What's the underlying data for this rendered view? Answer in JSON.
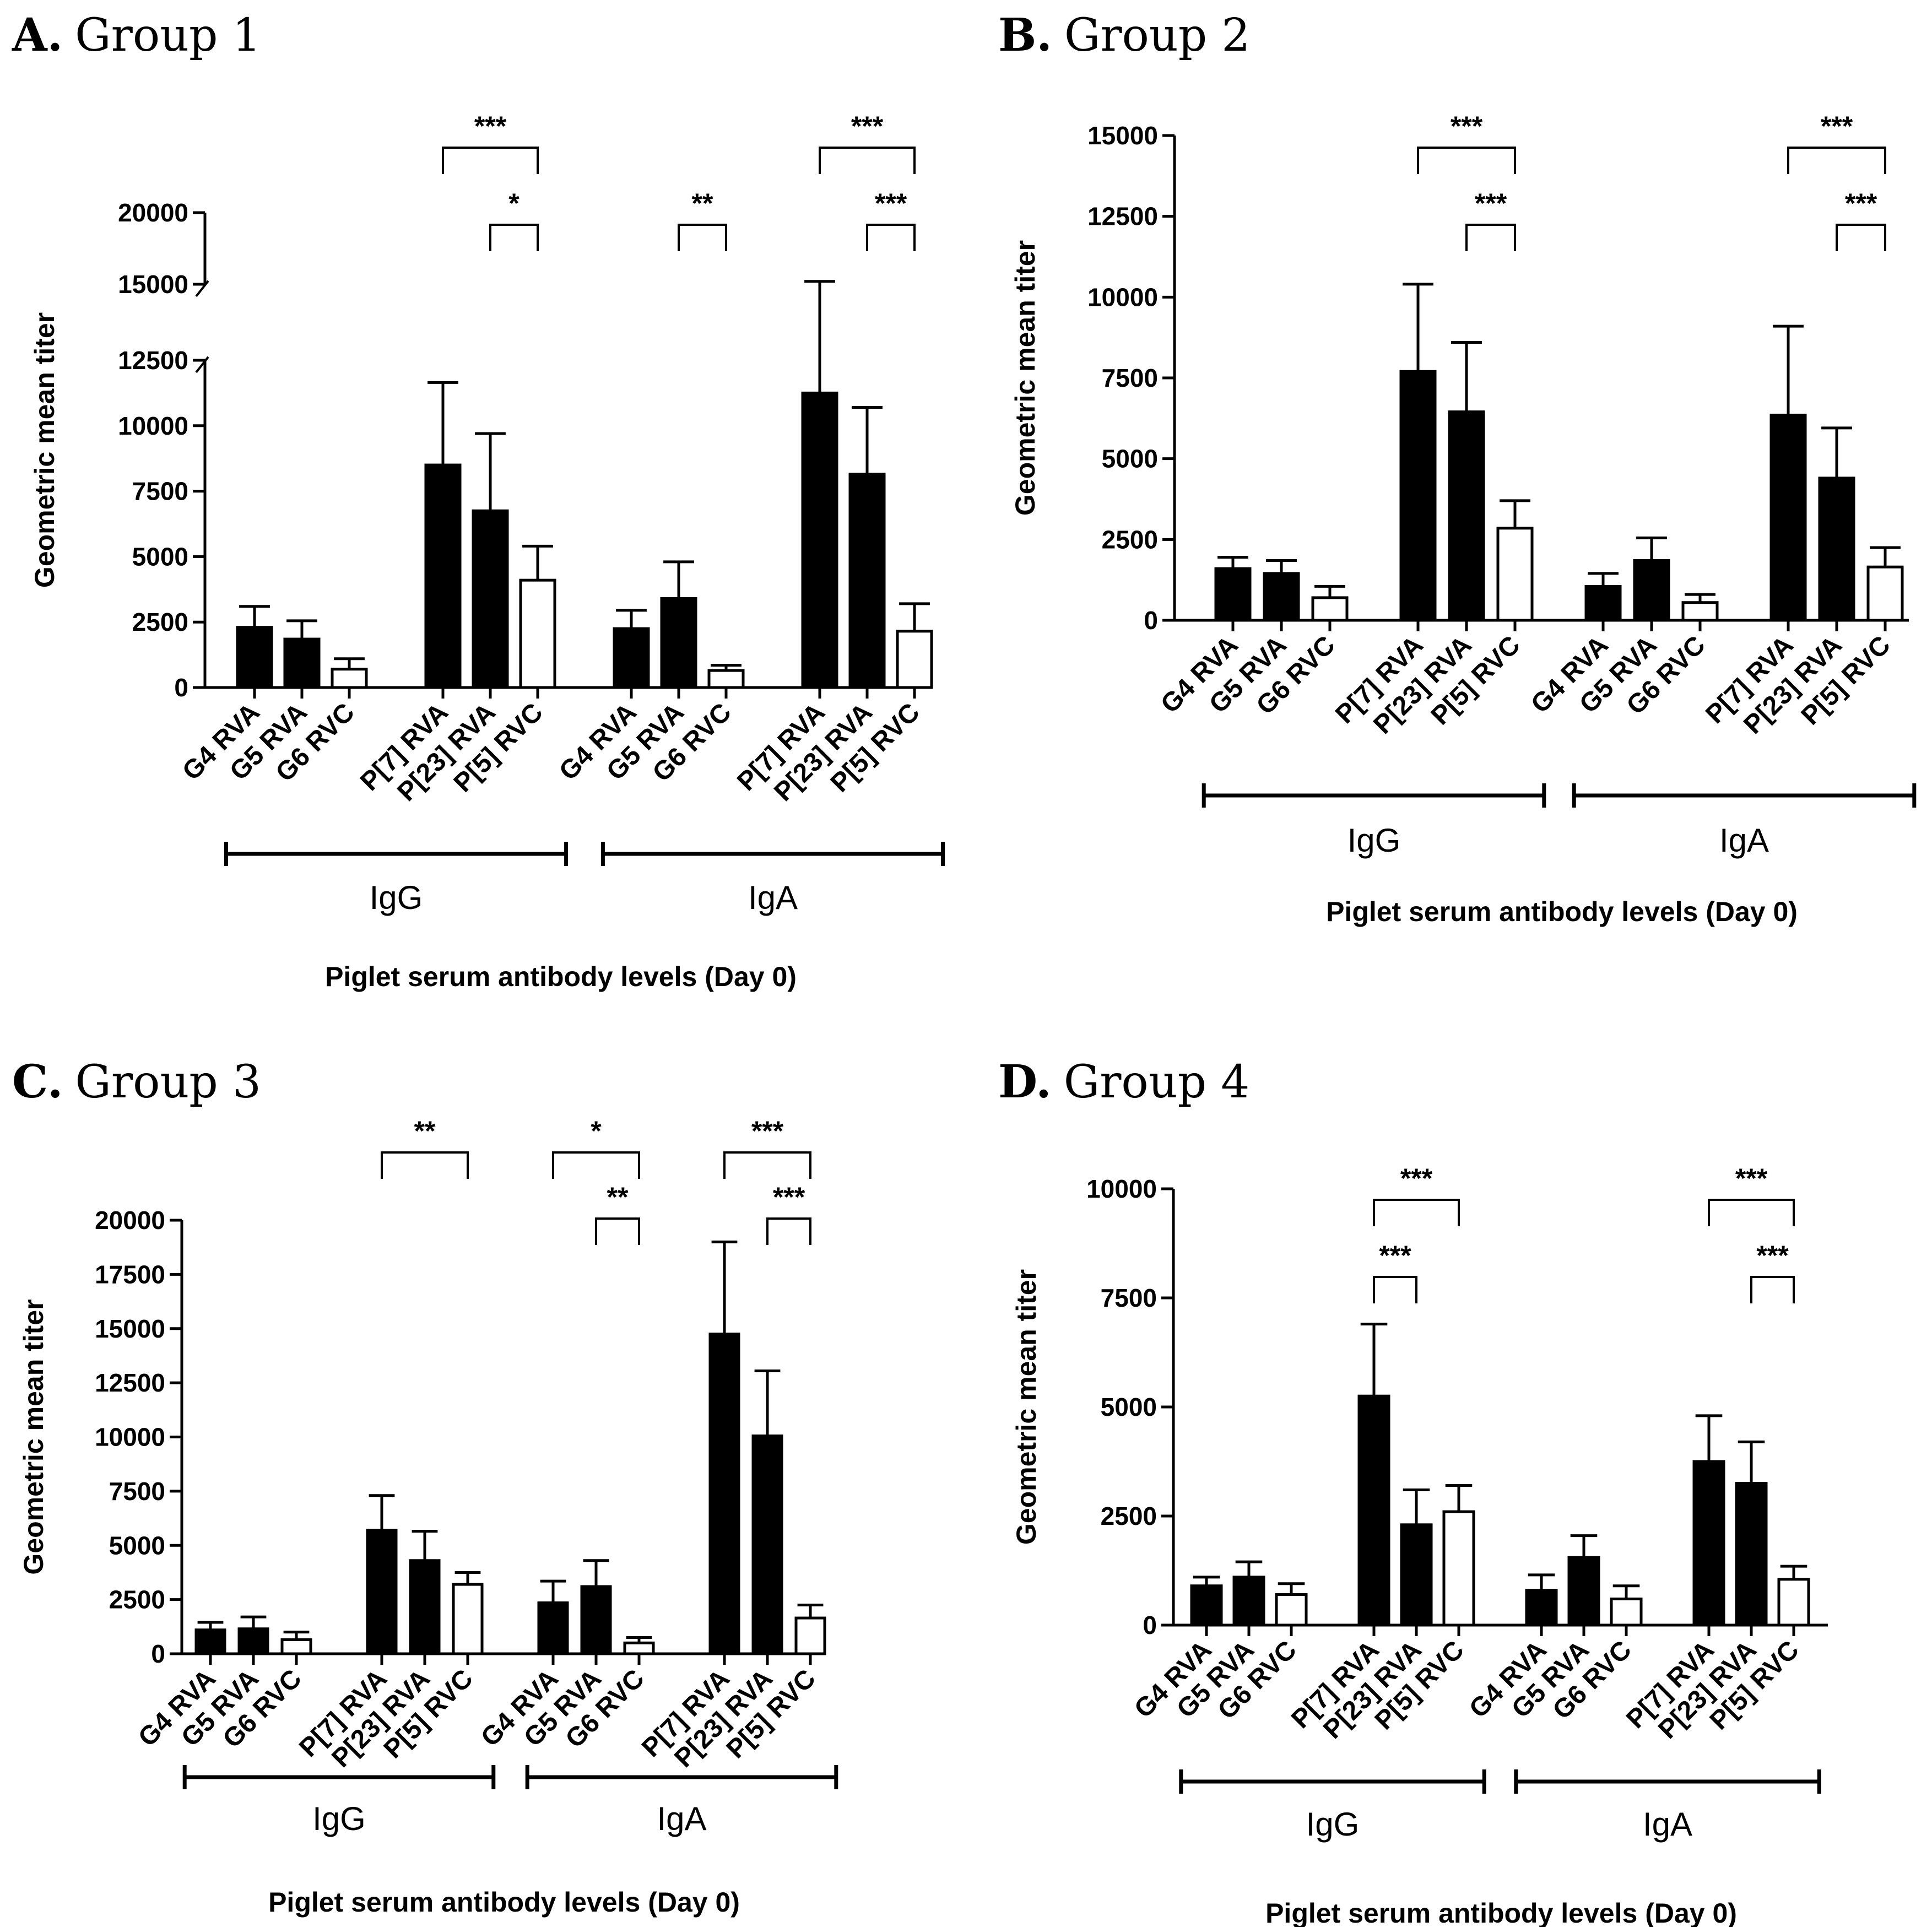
{
  "chart_data": [
    {
      "type": "bar",
      "panel_letter": "A.",
      "panel_title": "Group 1",
      "ylabel": "Geometric mean titer",
      "xlabel": "Piglet serum antibody levels (Day 0)",
      "axis_break": [
        12500,
        15000
      ],
      "ylim": [
        0,
        20000
      ],
      "yticks": [
        0,
        2500,
        5000,
        7500,
        10000,
        12500,
        15000,
        20000
      ],
      "ytick_labels": [
        "0",
        "2500",
        "5000",
        "7500",
        "10000",
        "12500",
        "15000",
        "20000"
      ],
      "categories": [
        "G4 RVA",
        "G5 RVA",
        "G6 RVC",
        "P[7] RVA",
        "P[23] RVA",
        "P[5] RVC",
        "G4 RVA",
        "G5 RVA",
        "G6 RVC",
        "P[7] RVA",
        "P[23] RVA",
        "P[5] RVC"
      ],
      "values": [
        2300,
        1850,
        700,
        8500,
        6750,
        4100,
        2250,
        3400,
        650,
        11250,
        8150,
        2150
      ],
      "error_upper": [
        3100,
        2550,
        1100,
        11650,
        9700,
        5400,
        2950,
        4800,
        850,
        15200,
        10700,
        3200
      ],
      "fill": [
        "black",
        "black",
        "white",
        "black",
        "black",
        "white",
        "black",
        "black",
        "white",
        "black",
        "black",
        "white"
      ],
      "groups": [
        {
          "label": "IgG"
        },
        {
          "label": "IgA"
        }
      ],
      "significance": [
        {
          "from": 3,
          "to": 5,
          "label": "***"
        },
        {
          "from": 4,
          "to": 5,
          "label": "*"
        },
        {
          "from": 7,
          "to": 8,
          "label": "**"
        },
        {
          "from": 9,
          "to": 11,
          "label": "***"
        },
        {
          "from": 10,
          "to": 11,
          "label": "***"
        }
      ]
    },
    {
      "type": "bar",
      "panel_letter": "B.",
      "panel_title": "Group 2",
      "ylabel": "Geometric mean titer",
      "xlabel": "Piglet serum antibody levels (Day 0)",
      "ylim": [
        0,
        15000
      ],
      "yticks": [
        0,
        2500,
        5000,
        7500,
        10000,
        12500,
        15000
      ],
      "ytick_labels": [
        "0",
        "2500",
        "5000",
        "7500",
        "10000",
        "12500",
        "15000"
      ],
      "categories": [
        "G4 RVA",
        "G5 RVA",
        "G6 RVC",
        "P[7] RVA",
        "P[23] RVA",
        "P[5] RVC",
        "G4 RVA",
        "G5 RVA",
        "G6 RVC",
        "P[7] RVA",
        "P[23] RVA",
        "P[5] RVC"
      ],
      "values": [
        1600,
        1450,
        700,
        7700,
        6450,
        2850,
        1050,
        1850,
        550,
        6350,
        4400,
        1650
      ],
      "error_upper": [
        1950,
        1850,
        1050,
        10400,
        8600,
        3700,
        1450,
        2550,
        800,
        9100,
        5950,
        2250
      ],
      "fill": [
        "black",
        "black",
        "white",
        "black",
        "black",
        "white",
        "black",
        "black",
        "white",
        "black",
        "black",
        "white"
      ],
      "groups": [
        {
          "label": "IgG"
        },
        {
          "label": "IgA"
        }
      ],
      "significance": [
        {
          "from": 3,
          "to": 5,
          "label": "***"
        },
        {
          "from": 4,
          "to": 5,
          "label": "***"
        },
        {
          "from": 9,
          "to": 11,
          "label": "***"
        },
        {
          "from": 10,
          "to": 11,
          "label": "***"
        }
      ]
    },
    {
      "type": "bar",
      "panel_letter": "C.",
      "panel_title": "Group 3",
      "ylabel": "Geometric mean titer",
      "xlabel": "Piglet serum antibody levels (Day 0)",
      "ylim": [
        0,
        20000
      ],
      "yticks": [
        0,
        2500,
        5000,
        7500,
        10000,
        12500,
        15000,
        17500,
        20000
      ],
      "ytick_labels": [
        "0",
        "2500",
        "5000",
        "7500",
        "10000",
        "12500",
        "15000",
        "17500",
        "20000"
      ],
      "categories": [
        "G4 RVA",
        "G5 RVA",
        "G6 RVC",
        "P[7] RVA",
        "P[23] RVA",
        "P[5] RVC",
        "G4 RVA",
        "G5 RVA",
        "G6 RVC",
        "P[7] RVA",
        "P[23] RVA",
        "P[5] RVC"
      ],
      "values": [
        1100,
        1150,
        650,
        5700,
        4300,
        3200,
        2350,
        3100,
        500,
        14750,
        10050,
        1650
      ],
      "error_upper": [
        1450,
        1700,
        1000,
        7300,
        5650,
        3750,
        3350,
        4300,
        750,
        19000,
        13050,
        2250
      ],
      "fill": [
        "black",
        "black",
        "white",
        "black",
        "black",
        "white",
        "black",
        "black",
        "white",
        "black",
        "black",
        "white"
      ],
      "groups": [
        {
          "label": "IgG"
        },
        {
          "label": "IgA"
        }
      ],
      "significance": [
        {
          "from": 3,
          "to": 5,
          "label": "**"
        },
        {
          "from": 6,
          "to": 8,
          "label": "*"
        },
        {
          "from": 7,
          "to": 8,
          "label": "**"
        },
        {
          "from": 9,
          "to": 11,
          "label": "***"
        },
        {
          "from": 10,
          "to": 11,
          "label": "***"
        }
      ]
    },
    {
      "type": "bar",
      "panel_letter": "D.",
      "panel_title": "Group 4",
      "ylabel": "Geometric mean titer",
      "xlabel": "Piglet serum antibody levels (Day 0)",
      "ylim": [
        0,
        10000
      ],
      "yticks": [
        0,
        2500,
        5000,
        7500,
        10000
      ],
      "ytick_labels": [
        "0",
        "2500",
        "5000",
        "7500",
        "10000"
      ],
      "categories": [
        "G4 RVA",
        "G5 RVA",
        "G6 RVC",
        "P[7] RVA",
        "P[23] RVA",
        "P[5] RVC",
        "G4 RVA",
        "G5 RVA",
        "G6 RVC",
        "P[7] RVA",
        "P[23] RVA",
        "P[5] RVC"
      ],
      "values": [
        900,
        1100,
        700,
        5250,
        2300,
        2600,
        800,
        1550,
        600,
        3750,
        3250,
        1050
      ],
      "error_upper": [
        1100,
        1450,
        950,
        6900,
        3100,
        3200,
        1150,
        2050,
        900,
        4800,
        4200,
        1350
      ],
      "fill": [
        "black",
        "black",
        "white",
        "black",
        "black",
        "white",
        "black",
        "black",
        "white",
        "black",
        "black",
        "white"
      ],
      "groups": [
        {
          "label": "IgG"
        },
        {
          "label": "IgA"
        }
      ],
      "significance": [
        {
          "from": 3,
          "to": 5,
          "label": "***"
        },
        {
          "from": 3,
          "to": 4,
          "label": "***"
        },
        {
          "from": 9,
          "to": 11,
          "label": "***"
        },
        {
          "from": 10,
          "to": 11,
          "label": "***"
        }
      ]
    }
  ]
}
